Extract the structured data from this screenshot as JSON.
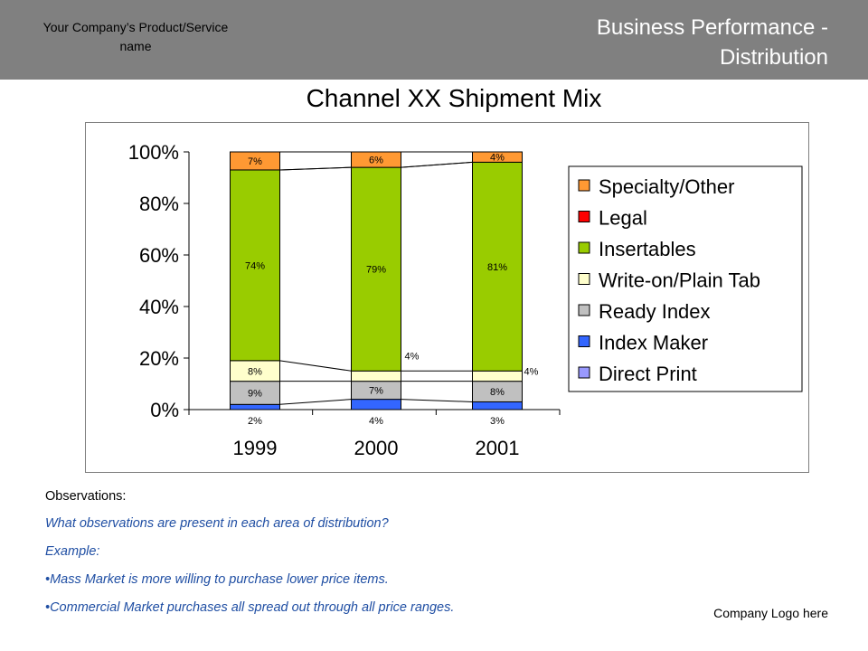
{
  "header": {
    "company": "Your Company’s Product/Service name",
    "title": "Business Performance -\nDistribution"
  },
  "colors": {
    "header_bg": "#808080",
    "Specialty/Other": "#ff9933",
    "Legal": "#ff0000",
    "Insertables": "#99cc00",
    "Write-on/Plain Tab": "#ffffcc",
    "Ready Index": "#c0c0c0",
    "Index Maker": "#3366ff",
    "Direct Print": "#9999ff",
    "observation_text": "#1f4ea3"
  },
  "chart_data": {
    "type": "bar",
    "stacked": true,
    "title": "Channel XX Shipment Mix",
    "categories": [
      "1999",
      "2000",
      "2001"
    ],
    "y_ticks": [
      "0%",
      "20%",
      "40%",
      "60%",
      "80%",
      "100%"
    ],
    "ylim": [
      0,
      100
    ],
    "legend_position": "right",
    "series": [
      {
        "name": "Direct Print",
        "values": [
          0,
          0,
          0
        ],
        "labels": [
          "",
          "",
          ""
        ]
      },
      {
        "name": "Index Maker",
        "values": [
          2,
          4,
          3
        ],
        "labels": [
          "2%",
          "4%",
          "3%"
        ]
      },
      {
        "name": "Ready Index",
        "values": [
          9,
          7,
          8
        ],
        "labels": [
          "9%",
          "7%",
          "8%"
        ]
      },
      {
        "name": "Write-on/Plain Tab",
        "values": [
          8,
          4,
          4
        ],
        "labels": [
          "8%",
          "4%",
          "4%"
        ]
      },
      {
        "name": "Insertables",
        "values": [
          74,
          79,
          81
        ],
        "labels": [
          "74%",
          "79%",
          "81%"
        ]
      },
      {
        "name": "Legal",
        "values": [
          0,
          0,
          0
        ],
        "labels": [
          "",
          "",
          ""
        ]
      },
      {
        "name": "Specialty/Other",
        "values": [
          7,
          6,
          4
        ],
        "labels": [
          "7%",
          "6%",
          "4%"
        ]
      }
    ],
    "legend_order": [
      "Specialty/Other",
      "Legal",
      "Insertables",
      "Write-on/Plain Tab",
      "Ready Index",
      "Index Maker",
      "Direct Print"
    ]
  },
  "observations": {
    "heading": "Observations:",
    "lines": [
      "What observations are present in each area of distribution?",
      "Example:",
      "•Mass Market is more willing to purchase lower price items.",
      "•Commercial Market purchases all spread out through all price ranges."
    ]
  },
  "footer": {
    "logo_text": "Company Logo here"
  }
}
